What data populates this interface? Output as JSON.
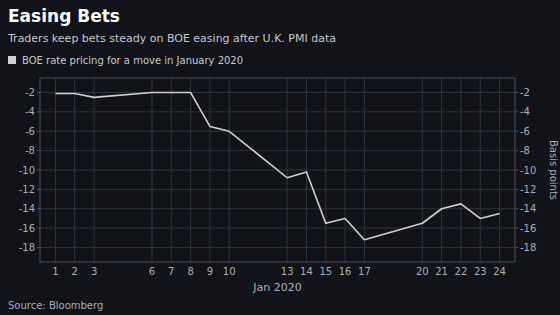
{
  "chart_data": {
    "type": "line",
    "title": "Easing Bets",
    "subtitle": "Traders keep bets steady on BOE easing after U.K. PMI data",
    "source": "Source: Bloomberg",
    "xlabel": "Jan 2020",
    "ylabel": "Basis points",
    "x": [
      1,
      2,
      3,
      6,
      7,
      8,
      9,
      10,
      13,
      14,
      15,
      16,
      17,
      20,
      21,
      22,
      23,
      24
    ],
    "series": [
      {
        "name": "BOE rate pricing for a move in January 2020",
        "color": "#d0d0d0",
        "values": [
          -2.1,
          -2.1,
          -2.5,
          -2.0,
          -2.0,
          -2.0,
          -5.5,
          -6.0,
          -10.8,
          -10.2,
          -15.5,
          -15.0,
          -17.2,
          -15.5,
          -14.0,
          -13.5,
          -15.0,
          -14.5
        ]
      }
    ],
    "xlim": [
      0.2,
      24.8
    ],
    "xticks": [
      1,
      2,
      3,
      6,
      7,
      8,
      9,
      10,
      13,
      14,
      15,
      16,
      17,
      20,
      21,
      22,
      23,
      24
    ],
    "ylim": [
      -19.5,
      -0.5
    ],
    "yticks": [
      -2,
      -4,
      -6,
      -8,
      -10,
      -12,
      -14,
      -16,
      -18
    ],
    "y2lim": [
      -19.5,
      -0.5
    ],
    "y2ticks": [
      -2,
      -4,
      -6,
      -8,
      -10,
      -12,
      -14,
      -16,
      -18
    ],
    "grid": true,
    "legend": "upper left"
  }
}
